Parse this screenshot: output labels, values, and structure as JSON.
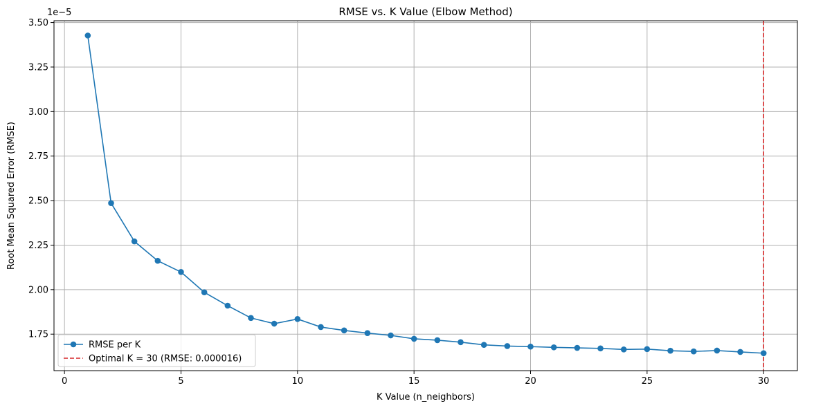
{
  "chart_data": {
    "type": "line",
    "title": "RMSE vs. K Value (Elbow Method)",
    "xlabel": "K Value (n_neighbors)",
    "ylabel": "Root Mean Squared Error (RMSE)",
    "y_offset_text": "1e−5",
    "xlim": [
      -0.45,
      31.45
    ],
    "ylim": [
      1.545,
      3.51
    ],
    "x_ticks": [
      0,
      5,
      10,
      15,
      20,
      25,
      30
    ],
    "y_ticks": [
      1.75,
      2.0,
      2.25,
      2.5,
      2.75,
      3.0,
      3.25,
      3.5
    ],
    "grid": true,
    "legend_position": "lower-left",
    "series": [
      {
        "name": "RMSE per K",
        "color": "#1f77b4",
        "marker": "circle",
        "x": [
          1,
          2,
          3,
          4,
          5,
          6,
          7,
          8,
          9,
          10,
          11,
          12,
          13,
          14,
          15,
          16,
          17,
          18,
          19,
          20,
          21,
          22,
          23,
          24,
          25,
          26,
          27,
          28,
          29,
          30
        ],
        "y": [
          3.427,
          2.486,
          2.271,
          2.162,
          2.099,
          1.985,
          1.91,
          1.841,
          1.809,
          1.835,
          1.79,
          1.771,
          1.756,
          1.743,
          1.724,
          1.716,
          1.705,
          1.69,
          1.683,
          1.68,
          1.676,
          1.673,
          1.67,
          1.664,
          1.666,
          1.657,
          1.653,
          1.658,
          1.65,
          1.643
        ]
      }
    ],
    "reference_lines": [
      {
        "name": "Optimal K = 30 (RMSE: 0.000016)",
        "orientation": "vertical",
        "x": 30,
        "color": "#d62728",
        "style": "dashed"
      }
    ]
  }
}
